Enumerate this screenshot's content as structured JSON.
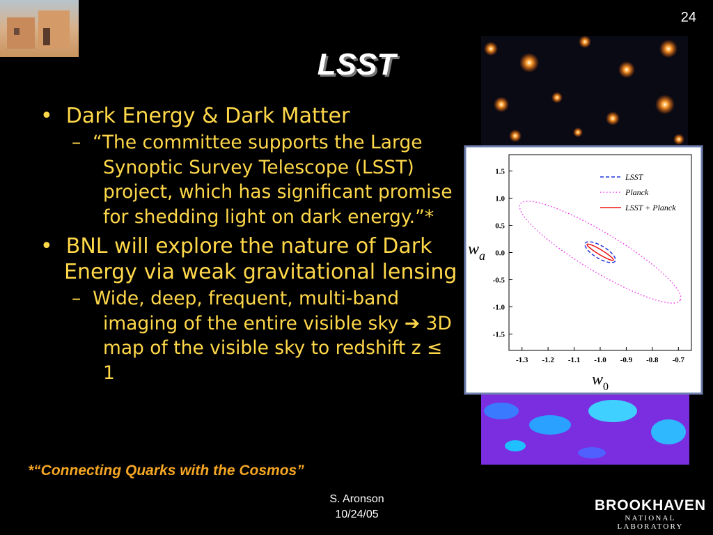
{
  "slide_number": "24",
  "title": "LSST",
  "bullets": [
    {
      "text": "Dark Energy & Dark Matter",
      "sub": [
        "“The committee supports the Large Synoptic Survey Telescope (LSST) project, which has significant promise for shedding light on dark energy.”*"
      ]
    },
    {
      "text": "BNL will explore the nature of Dark Energy via weak gravitational lensing",
      "sub": [
        "Wide, deep, frequent, multi-band imaging of the entire visible sky ➔ 3D map of the visible sky to redshift z ≤ 1"
      ]
    }
  ],
  "footnote": "*“Connecting Quarks with the Cosmos”",
  "author": "S. Aronson",
  "date": "10/24/05",
  "logo": {
    "name": "BROOKHAVEN",
    "subtitle": "NATIONAL LABORATORY"
  },
  "chart_data": {
    "type": "contour",
    "xlabel": {
      "symbol": "w",
      "subscript": "0"
    },
    "ylabel": {
      "symbol": "w",
      "subscript": "a"
    },
    "xlim": [
      -1.35,
      -0.65
    ],
    "ylim": [
      -1.8,
      1.8
    ],
    "xticks": [
      -1.3,
      -1.2,
      -1.1,
      {
        "value": -1.0,
        "label": "-1.0"
      },
      -0.9,
      -0.8,
      -0.7
    ],
    "yticks": [
      1.5,
      {
        "value": 1.0,
        "label": "1.0"
      },
      0.5,
      {
        "value": 0.0,
        "label": "0.0"
      },
      -0.5,
      {
        "value": -1.0,
        "label": "-1.0"
      },
      -1.5
    ],
    "series": [
      {
        "name": "LSST",
        "color": "#2233dd"
      },
      {
        "name": "Planck",
        "color": "#ee33ee"
      },
      {
        "name": "LSST + Planck",
        "color": "#ee1111"
      }
    ]
  }
}
